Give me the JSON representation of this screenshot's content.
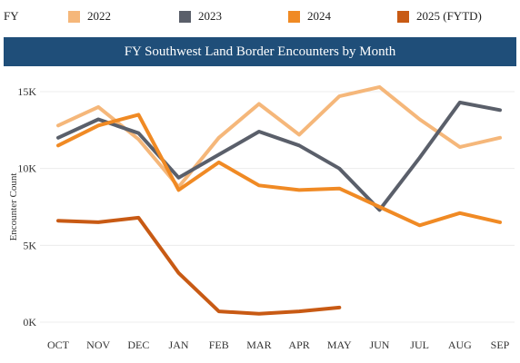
{
  "legend": {
    "title": "FY",
    "items": [
      {
        "label": "2022",
        "color": "#f5b77a"
      },
      {
        "label": "2023",
        "color": "#5a5f6a"
      },
      {
        "label": "2024",
        "color": "#f08a24"
      },
      {
        "label": "2025 (FYTD)",
        "color": "#c85a14"
      }
    ]
  },
  "chart_data": {
    "type": "line",
    "title": "FY Southwest Land Border Encounters by Month",
    "xlabel": "",
    "ylabel": "Encounter Count",
    "categories": [
      "OCT",
      "NOV",
      "DEC",
      "JAN",
      "FEB",
      "MAR",
      "APR",
      "MAY",
      "JUN",
      "JUL",
      "AUG",
      "SEP"
    ],
    "ylim": [
      0,
      16500
    ],
    "yticks": [
      0,
      5000,
      10000,
      15000
    ],
    "ytick_labels": [
      "0K",
      "5K",
      "10K",
      "15K"
    ],
    "grid": true,
    "legend_position": "top",
    "series": [
      {
        "name": "2022",
        "color": "#f5b77a",
        "values": [
          12800,
          14000,
          11900,
          8800,
          12000,
          14200,
          12200,
          14700,
          15300,
          13200,
          11400,
          12000
        ]
      },
      {
        "name": "2023",
        "color": "#5a5f6a",
        "values": [
          12000,
          13200,
          12300,
          9400,
          10900,
          12400,
          11500,
          10000,
          7300,
          10700,
          14300,
          13800
        ]
      },
      {
        "name": "2024",
        "color": "#f08a24",
        "values": [
          11500,
          12800,
          13500,
          8600,
          10400,
          8900,
          8600,
          8700,
          7500,
          6300,
          7100,
          6500
        ]
      },
      {
        "name": "2025 (FYTD)",
        "color": "#c85a14",
        "values": [
          6600,
          6500,
          6800,
          3200,
          700,
          550,
          700,
          950,
          null,
          null,
          null,
          null
        ]
      }
    ]
  }
}
